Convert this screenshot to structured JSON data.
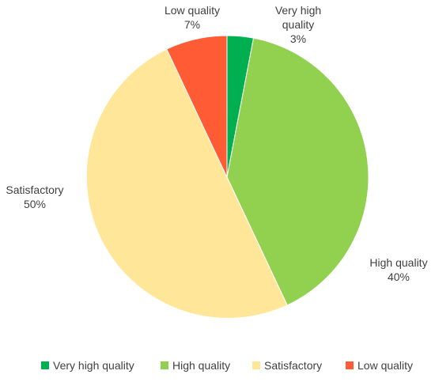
{
  "chart_data": {
    "type": "pie",
    "categories": [
      "Very high quality",
      "High quality",
      "Satisfactory",
      "Low quality"
    ],
    "values": [
      3,
      40,
      50,
      7
    ],
    "colors": [
      "#00b050",
      "#92d050",
      "#ffe699",
      "#ff5b35"
    ],
    "data_labels": [
      {
        "lines": [
          "Very high",
          "quality",
          "3%"
        ]
      },
      {
        "lines": [
          "High quality",
          "40%"
        ]
      },
      {
        "lines": [
          "Satisfactory",
          "50%"
        ]
      },
      {
        "lines": [
          "Low quality",
          "7%"
        ]
      }
    ],
    "legend": {
      "position": "bottom",
      "entries": [
        "Very high quality",
        "High quality",
        "Satisfactory",
        "Low quality"
      ]
    }
  }
}
